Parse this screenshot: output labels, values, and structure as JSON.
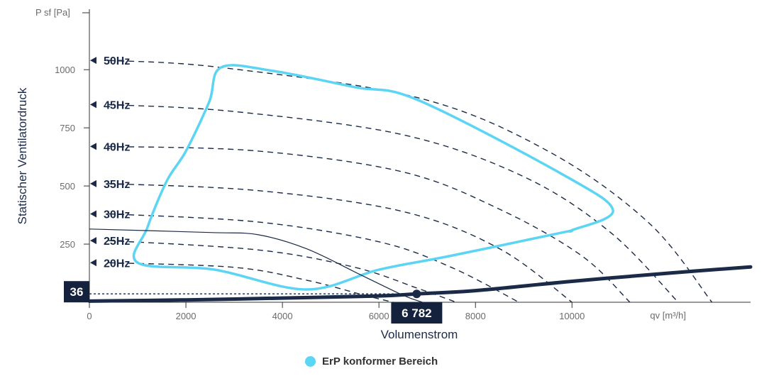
{
  "chart_data": {
    "type": "line",
    "y_unit": "P sf [Pa]",
    "x_unit": "qv [m³/h]",
    "ylabel": "Statischer Ventilatordruck",
    "xlabel": "Volumenstrom",
    "xlim": [
      0,
      13700
    ],
    "ylim": [
      0,
      1260
    ],
    "x_ticks": [
      0,
      2000,
      4000,
      6000,
      8000,
      10000
    ],
    "x_tick_labels": [
      "0",
      "2000",
      "4000",
      "6000",
      "8000",
      "10000"
    ],
    "y_ticks": [
      250,
      500,
      750,
      1000
    ],
    "y_tick_labels": [
      "250",
      "500",
      "750",
      "1000"
    ],
    "frequency_curves": [
      {
        "label": "50Hz",
        "points": [
          [
            400,
            1040
          ],
          [
            2700,
            1010
          ],
          [
            6800,
            880
          ],
          [
            9500,
            650
          ],
          [
            11600,
            340
          ],
          [
            12900,
            0
          ]
        ]
      },
      {
        "label": "45Hz",
        "points": [
          [
            400,
            850
          ],
          [
            3000,
            820
          ],
          [
            6500,
            720
          ],
          [
            9000,
            540
          ],
          [
            10800,
            300
          ],
          [
            12200,
            0
          ]
        ]
      },
      {
        "label": "40Hz",
        "points": [
          [
            400,
            670
          ],
          [
            3500,
            650
          ],
          [
            6500,
            560
          ],
          [
            8500,
            400
          ],
          [
            10200,
            200
          ],
          [
            11200,
            0
          ]
        ]
      },
      {
        "label": "35Hz",
        "points": [
          [
            400,
            510
          ],
          [
            3500,
            480
          ],
          [
            6500,
            390
          ],
          [
            8500,
            230
          ],
          [
            10000,
            0
          ]
        ]
      },
      {
        "label": "30Hz",
        "points": [
          [
            400,
            380
          ],
          [
            3500,
            345
          ],
          [
            6000,
            260
          ],
          [
            7500,
            150
          ],
          [
            8900,
            0
          ]
        ]
      },
      {
        "label": "25Hz",
        "points": [
          [
            400,
            265
          ],
          [
            3500,
            225
          ],
          [
            5500,
            150
          ],
          [
            6800,
            60
          ],
          [
            7600,
            0
          ]
        ]
      },
      {
        "label": "20Hz",
        "points": [
          [
            400,
            170
          ],
          [
            3000,
            150
          ],
          [
            4500,
            95
          ],
          [
            5700,
            30
          ],
          [
            6300,
            0
          ]
        ]
      }
    ],
    "erp_area": {
      "name": "ErP konformer Bereich",
      "color": "#5cd5f5",
      "points": [
        [
          2730,
          1010
        ],
        [
          3800,
          995
        ],
        [
          5500,
          925
        ],
        [
          6800,
          870
        ],
        [
          9800,
          550
        ],
        [
          10850,
          395
        ],
        [
          10000,
          310
        ],
        [
          9800,
          300
        ],
        [
          7500,
          200
        ],
        [
          6000,
          140
        ],
        [
          4500,
          55
        ],
        [
          2600,
          140
        ],
        [
          1000,
          170
        ],
        [
          1200,
          320
        ],
        [
          1600,
          520
        ],
        [
          2000,
          650
        ],
        [
          2480,
          860
        ]
      ]
    },
    "system_curve": {
      "color": "#1b2a47",
      "points": [
        [
          0,
          5
        ],
        [
          2000,
          10
        ],
        [
          4000,
          18
        ],
        [
          6000,
          27
        ],
        [
          6782,
          36
        ],
        [
          8000,
          50
        ],
        [
          10000,
          90
        ],
        [
          12000,
          125
        ],
        [
          13700,
          152
        ]
      ]
    },
    "fan_curve": {
      "color": "#1b2a47",
      "points": [
        [
          0,
          315
        ],
        [
          2500,
          300
        ],
        [
          3500,
          290
        ],
        [
          4500,
          230
        ],
        [
          5600,
          120
        ],
        [
          6500,
          30
        ],
        [
          6900,
          0
        ]
      ]
    },
    "operating_point": {
      "x": 6782,
      "y": 36
    },
    "operating_point_x_label": "6 782",
    "operating_point_y_label": "36"
  },
  "legend": {
    "label": "ErP konformer Bereich",
    "color": "#5cd5f5"
  }
}
